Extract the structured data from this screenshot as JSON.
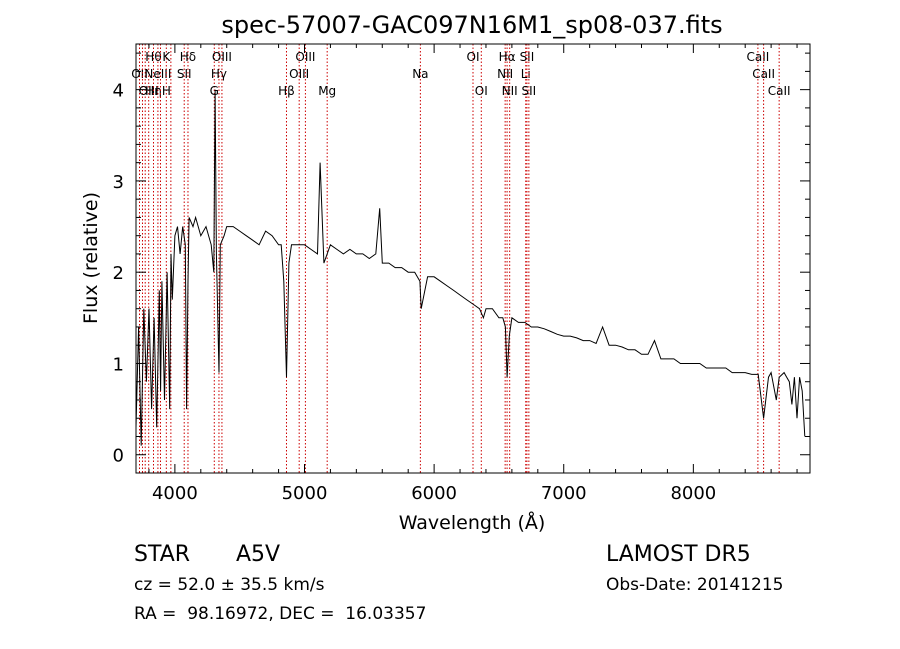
{
  "chart_data": {
    "type": "line",
    "title": "spec-57007-GAC097N16M1_sp08-037.fits",
    "xlabel": "Wavelength (Å)",
    "ylabel": "Flux (relative)",
    "xlim": [
      3700,
      8900
    ],
    "ylim": [
      -0.2,
      4.5
    ],
    "xticks": [
      4000,
      5000,
      6000,
      7000,
      8000
    ],
    "yticks": [
      0,
      1,
      2,
      3,
      4
    ],
    "grid": false,
    "legend": "none",
    "series": [
      {
        "x": [
          3700,
          3720,
          3740,
          3760,
          3780,
          3800,
          3820,
          3840,
          3860,
          3880,
          3890,
          3900,
          3920,
          3940,
          3960,
          3970,
          3980,
          4000,
          4020,
          4040,
          4060,
          4080,
          4090,
          4101,
          4110,
          4140,
          4160,
          4200,
          4240,
          4280,
          4300,
          4310,
          4320,
          4340,
          4350,
          4380,
          4400,
          4450,
          4500,
          4550,
          4600,
          4650,
          4700,
          4750,
          4800,
          4820,
          4840,
          4861,
          4880,
          4900,
          4950,
          5000,
          5050,
          5100,
          5120,
          5150,
          5200,
          5250,
          5300,
          5350,
          5400,
          5450,
          5500,
          5550,
          5580,
          5600,
          5650,
          5700,
          5750,
          5800,
          5850,
          5890,
          5900,
          5950,
          6000,
          6050,
          6100,
          6150,
          6200,
          6250,
          6300,
          6350,
          6380,
          6400,
          6450,
          6500,
          6530,
          6550,
          6563,
          6580,
          6600,
          6650,
          6700,
          6750,
          6800,
          6850,
          6900,
          6950,
          7000,
          7050,
          7100,
          7150,
          7200,
          7250,
          7300,
          7350,
          7400,
          7450,
          7500,
          7550,
          7600,
          7650,
          7700,
          7750,
          7800,
          7850,
          7900,
          7950,
          8000,
          8050,
          8100,
          8150,
          8200,
          8250,
          8300,
          8350,
          8400,
          8450,
          8500,
          8542,
          8580,
          8600,
          8640,
          8662,
          8700,
          8720,
          8740,
          8760,
          8780,
          8800,
          8820,
          8840,
          8860
        ],
        "y": [
          0.3,
          1.4,
          0.1,
          1.6,
          0.8,
          1.6,
          0.5,
          1.5,
          0.3,
          1.8,
          0.7,
          1.9,
          0.6,
          2.0,
          0.5,
          2.2,
          1.7,
          2.4,
          2.5,
          2.2,
          2.5,
          2.3,
          0.5,
          1.9,
          2.6,
          2.5,
          2.6,
          2.4,
          2.5,
          2.3,
          2.0,
          4.0,
          2.2,
          0.9,
          2.3,
          2.4,
          2.5,
          2.5,
          2.45,
          2.4,
          2.35,
          2.3,
          2.45,
          2.4,
          2.3,
          2.3,
          1.9,
          0.85,
          2.1,
          2.3,
          2.3,
          2.3,
          2.25,
          2.2,
          3.2,
          2.1,
          2.3,
          2.25,
          2.2,
          2.25,
          2.2,
          2.2,
          2.15,
          2.2,
          2.7,
          2.1,
          2.1,
          2.05,
          2.05,
          2.0,
          2.0,
          1.9,
          1.6,
          1.95,
          1.95,
          1.9,
          1.85,
          1.8,
          1.75,
          1.7,
          1.65,
          1.6,
          1.5,
          1.6,
          1.6,
          1.5,
          1.5,
          1.4,
          0.85,
          1.3,
          1.5,
          1.45,
          1.45,
          1.4,
          1.4,
          1.38,
          1.35,
          1.32,
          1.3,
          1.3,
          1.28,
          1.25,
          1.25,
          1.22,
          1.4,
          1.2,
          1.2,
          1.18,
          1.15,
          1.15,
          1.1,
          1.1,
          1.25,
          1.05,
          1.05,
          1.05,
          1.0,
          1.0,
          1.0,
          1.0,
          0.95,
          0.95,
          0.95,
          0.95,
          0.9,
          0.9,
          0.9,
          0.88,
          0.88,
          0.4,
          0.85,
          0.9,
          0.6,
          0.85,
          0.9,
          0.85,
          0.8,
          0.55,
          0.85,
          0.4,
          0.85,
          0.7,
          0.2
        ]
      }
    ],
    "line_markers": [
      {
        "wavelength": 3727,
        "labels": [
          "",
          "OII"
        ]
      },
      {
        "wavelength": 3750,
        "labels": [
          ""
        ]
      },
      {
        "wavelength": 3771,
        "labels": [
          ""
        ]
      },
      {
        "wavelength": 3798,
        "labels": [
          "",
          "",
          "OIII"
        ]
      },
      {
        "wavelength": 3835,
        "labels": [
          "Hθ",
          "",
          "Hη"
        ]
      },
      {
        "wavelength": 3869,
        "labels": [
          "",
          "NeIII"
        ]
      },
      {
        "wavelength": 3889,
        "labels": [
          ""
        ]
      },
      {
        "wavelength": 3934,
        "labels": [
          "K",
          "",
          "H"
        ]
      },
      {
        "wavelength": 3969,
        "labels": [
          ""
        ]
      },
      {
        "wavelength": 4072,
        "labels": [
          "",
          "SII"
        ]
      },
      {
        "wavelength": 4101,
        "labels": [
          "Hδ"
        ]
      },
      {
        "wavelength": 4304,
        "labels": [
          "",
          "",
          "G"
        ]
      },
      {
        "wavelength": 4340,
        "labels": [
          "",
          "Hγ"
        ]
      },
      {
        "wavelength": 4363,
        "labels": [
          "OIII"
        ]
      },
      {
        "wavelength": 4861,
        "labels": [
          "",
          "",
          "Hβ"
        ]
      },
      {
        "wavelength": 4959,
        "labels": [
          "",
          "OIII"
        ]
      },
      {
        "wavelength": 5007,
        "labels": [
          "OIII"
        ]
      },
      {
        "wavelength": 5175,
        "labels": [
          "",
          "",
          "Mg"
        ]
      },
      {
        "wavelength": 5894,
        "labels": [
          "",
          "Na"
        ]
      },
      {
        "wavelength": 6300,
        "labels": [
          "OI"
        ]
      },
      {
        "wavelength": 6364,
        "labels": [
          "",
          "",
          "OI"
        ]
      },
      {
        "wavelength": 6548,
        "labels": [
          "",
          "NII"
        ]
      },
      {
        "wavelength": 6563,
        "labels": [
          "Hα"
        ]
      },
      {
        "wavelength": 6583,
        "labels": [
          "",
          "",
          "NII"
        ]
      },
      {
        "wavelength": 6707,
        "labels": [
          "",
          "Li"
        ]
      },
      {
        "wavelength": 6716,
        "labels": [
          "SII"
        ]
      },
      {
        "wavelength": 6731,
        "labels": [
          "",
          "",
          "SII"
        ]
      },
      {
        "wavelength": 8498,
        "labels": [
          "CaII"
        ]
      },
      {
        "wavelength": 8542,
        "labels": [
          "",
          "CaII"
        ]
      },
      {
        "wavelength": 8662,
        "labels": [
          "",
          "",
          "CaII"
        ]
      }
    ],
    "colors": {
      "spectrum": "#000000",
      "markers": "#cc0000",
      "axes": "#000000"
    }
  },
  "footer": {
    "object_class": "STAR",
    "subclass": "A5V",
    "survey": "LAMOST DR5",
    "redshift": "cz = 52.0 ± 35.5 km/s",
    "obs_date": "Obs-Date: 20141215",
    "coords": "RA =  98.16972, DEC =  16.03357"
  }
}
